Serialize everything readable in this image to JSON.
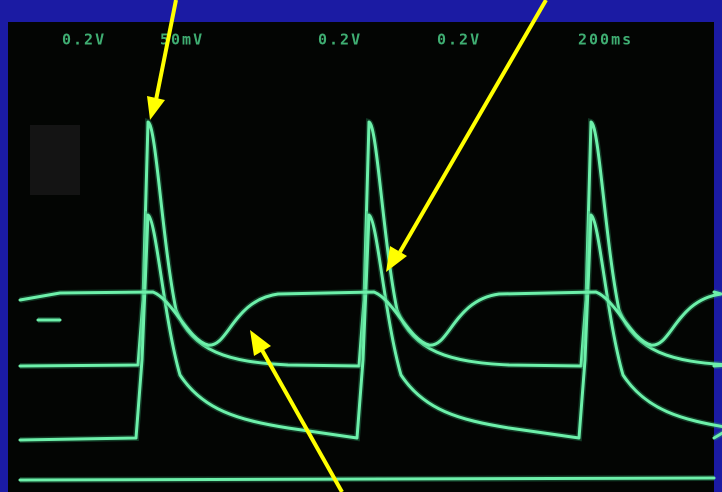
{
  "screen": {
    "labels": [
      "0.2V",
      "50mV",
      "0.2V",
      "0.2V",
      "200ms"
    ]
  }
}
